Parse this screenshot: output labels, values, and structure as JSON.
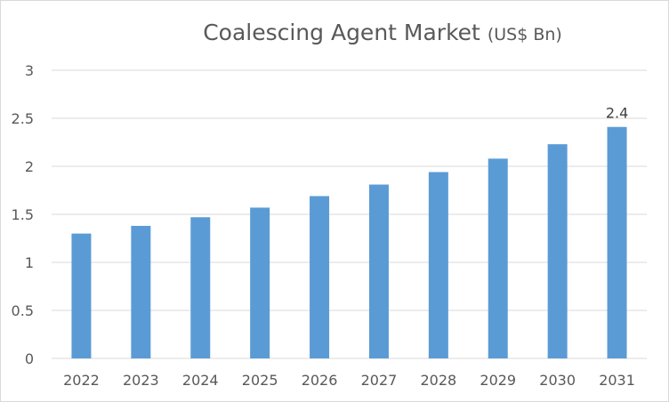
{
  "chart_data": {
    "type": "bar",
    "title": "Coalescing Agent Market",
    "title_unit": "(US$ Bn)",
    "categories": [
      "2022",
      "2023",
      "2024",
      "2025",
      "2026",
      "2027",
      "2028",
      "2029",
      "2030",
      "2031"
    ],
    "values": [
      1.3,
      1.38,
      1.47,
      1.57,
      1.69,
      1.81,
      1.94,
      2.08,
      2.23,
      2.41
    ],
    "data_labels": [
      {
        "index": 9,
        "text": "2.4"
      }
    ],
    "y_ticks": [
      "0",
      "0.5",
      "1",
      "1.5",
      "2",
      "2.5",
      "3"
    ],
    "ylim": [
      0,
      3
    ],
    "xlabel": "",
    "ylabel": "",
    "grid": true,
    "legend": "none",
    "bar_color": "#5b9bd5",
    "grid_color": "#d9d9d9"
  }
}
